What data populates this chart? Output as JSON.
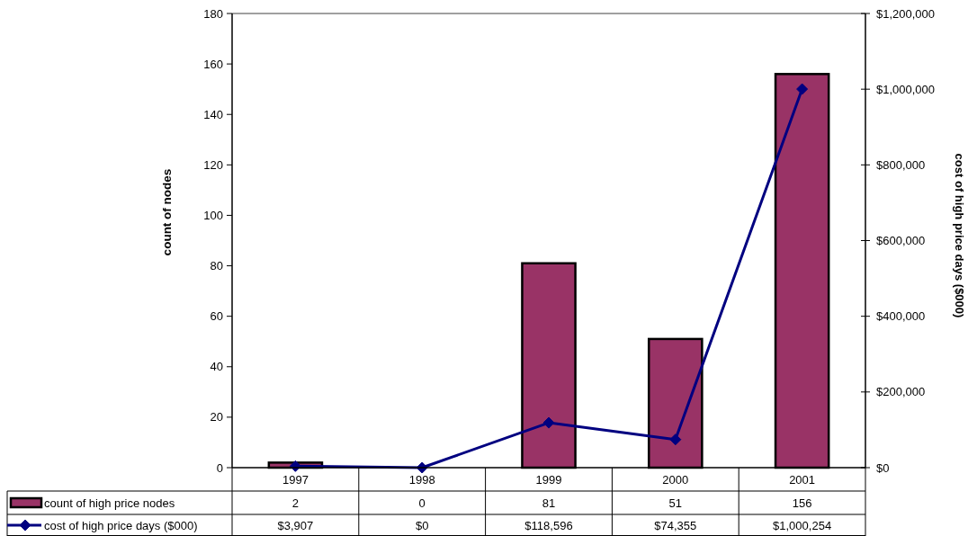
{
  "chart_data": {
    "type": "bar",
    "categories": [
      "1997",
      "1998",
      "1999",
      "2000",
      "2001"
    ],
    "series": [
      {
        "name": "count of high price nodes",
        "color": "#993366",
        "values": [
          2,
          0,
          81,
          51,
          156
        ],
        "value_labels": [
          "2",
          "0",
          "81",
          "51",
          "156"
        ]
      },
      {
        "name": "cost of high price days ($000)",
        "type": "line",
        "axis": "y2",
        "color": "#000080",
        "marker": "diamond",
        "line_style": "solid",
        "values": [
          3907,
          0,
          118596,
          74355,
          1000254
        ],
        "value_labels": [
          "$3,907",
          "$0",
          "$118,596",
          "$74,355",
          "$1,000,254"
        ]
      }
    ],
    "ylabel": "count of nodes",
    "y2label": "cost of high price days ($000)",
    "ylim": [
      0,
      180
    ],
    "yticks": [
      0,
      20,
      40,
      60,
      80,
      100,
      120,
      140,
      160,
      180
    ],
    "y2lim": [
      0,
      1200000
    ],
    "y2ticks": [
      {
        "value": 0,
        "label": "$0"
      },
      {
        "value": 200000,
        "label": "$200,000"
      },
      {
        "value": 400000,
        "label": "$400,000"
      },
      {
        "value": 600000,
        "label": "$600,000"
      },
      {
        "value": 800000,
        "label": "$800,000"
      },
      {
        "value": 1000000,
        "label": "$1,000,000"
      },
      {
        "value": 1200000,
        "label": "$1,200,000"
      }
    ],
    "legend": "bottom"
  }
}
